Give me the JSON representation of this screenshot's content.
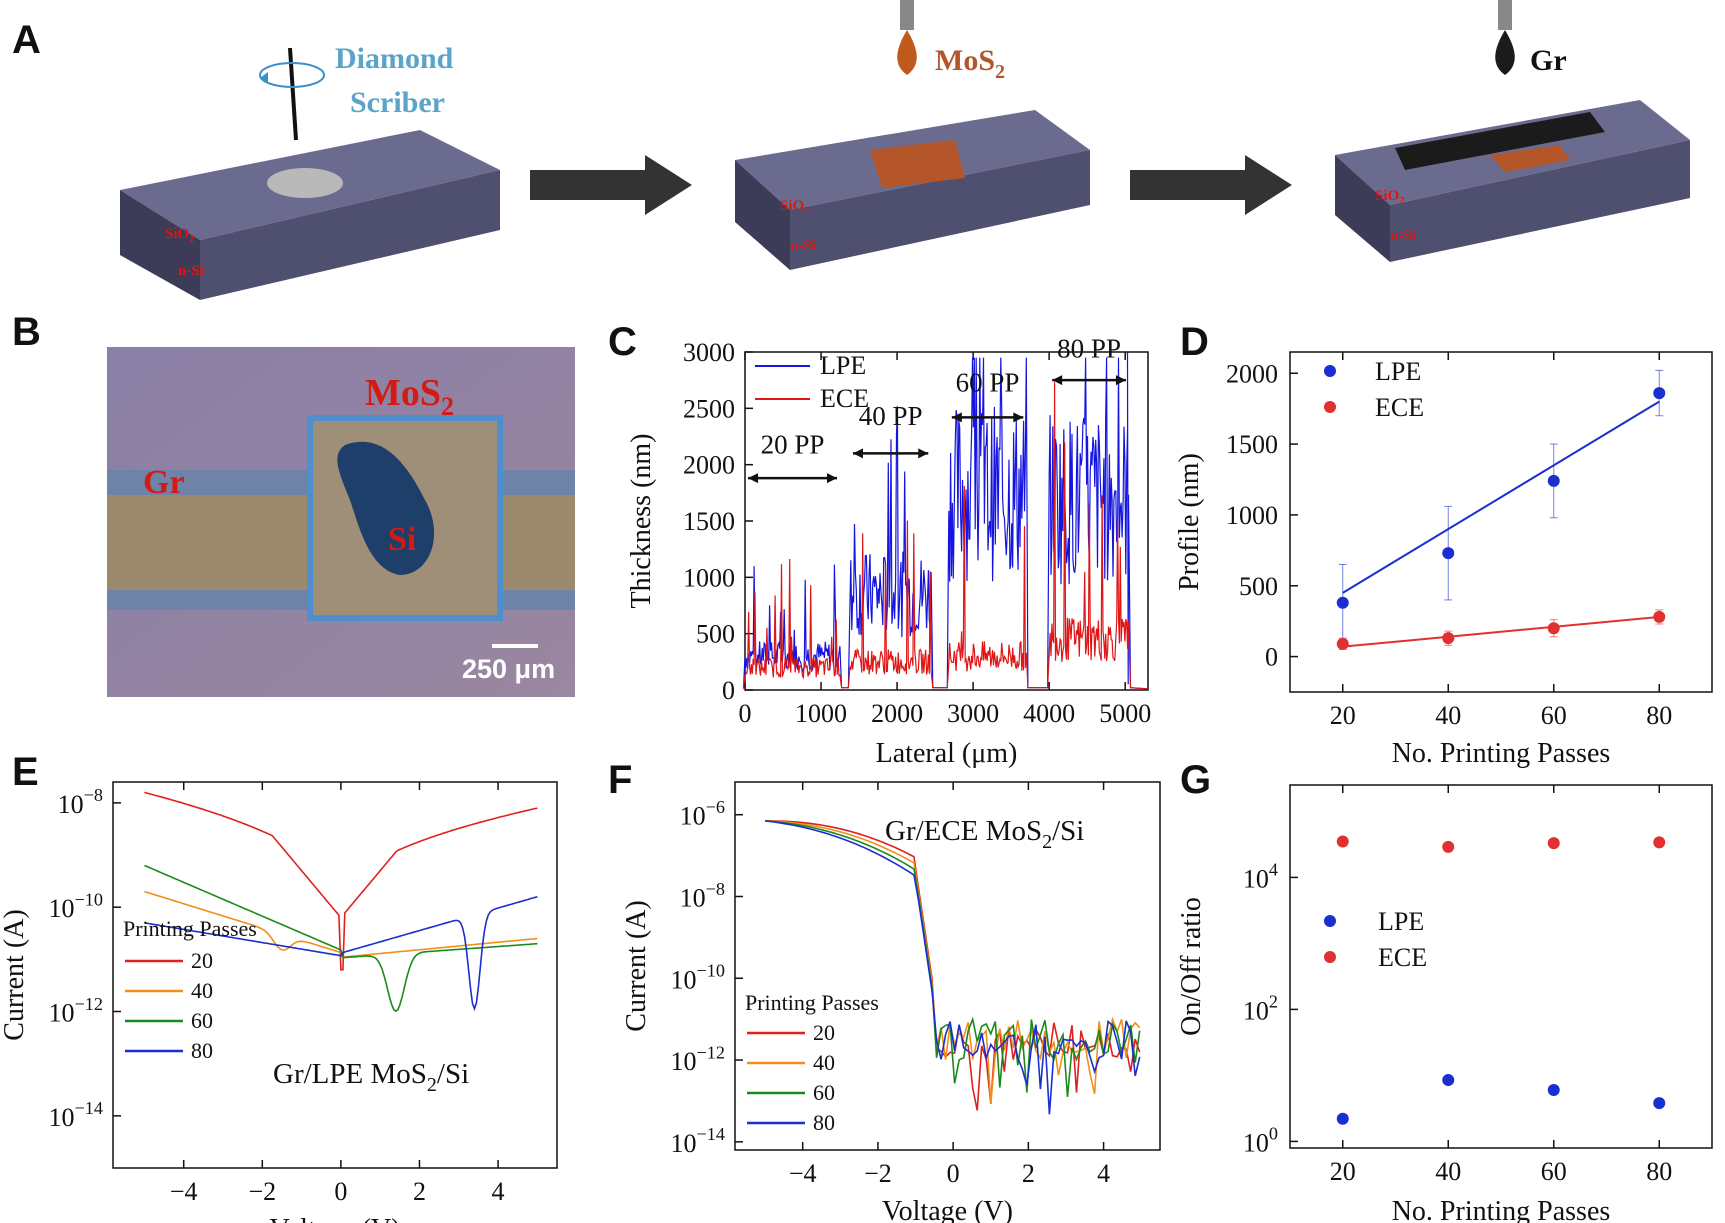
{
  "panels": {
    "A": "A",
    "B": "B",
    "C": "C",
    "D": "D",
    "E": "E",
    "F": "F",
    "G": "G"
  },
  "schematic": {
    "scriber_label_1": "Diamond",
    "scriber_label_2": "Scriber",
    "mos2_label": "MoS",
    "mos2_sub": "2",
    "gr_label": "Gr",
    "sio2": "SiO",
    "sio2_sub": "2",
    "nsi": "n-Si",
    "colors": {
      "substrate_top": "#6a6a8a",
      "substrate_front": "#4c4c68",
      "mos2": "#b5562a",
      "graphene": "#1b1b1b",
      "scriber": "#5ba3c9",
      "label_red": "#e3140f"
    }
  },
  "micrograph": {
    "mos2_label": "MoS",
    "mos2_sub": "2",
    "gr_label": "Gr",
    "si_label": "Si",
    "scale_label": "250 μm"
  },
  "chart_data": [
    {
      "id": "C",
      "type": "line",
      "xlabel": "Lateral (μm)",
      "ylabel": "Thickness (nm)",
      "xlim": [
        0,
        5300
      ],
      "ylim": [
        0,
        3000
      ],
      "xticks": [
        0,
        1000,
        2000,
        3000,
        4000,
        5000
      ],
      "yticks": [
        0,
        500,
        1000,
        1500,
        2000,
        2500,
        3000
      ],
      "legend": "top-left",
      "annotations": [
        "20 PP",
        "40 PP",
        "60 PP",
        "80 PP"
      ],
      "series": [
        {
          "name": "LPE",
          "color": "#1515e0",
          "segments": [
            [
              0,
              1250,
              300
            ],
            [
              1380,
              2450,
              850
            ],
            [
              2680,
              3700,
              1750
            ],
            [
              4000,
              5050,
              1700
            ]
          ]
        },
        {
          "name": "ECE",
          "color": "#e01515",
          "segments": [
            [
              0,
              1250,
              200
            ],
            [
              1380,
              2450,
              250
            ],
            [
              2680,
              3700,
              300
            ],
            [
              4000,
              5050,
              450
            ]
          ]
        }
      ]
    },
    {
      "id": "D",
      "type": "scatter",
      "xlabel": "No. Printing Passes",
      "ylabel": "Profile (nm)",
      "xlim": [
        10,
        90
      ],
      "ylim": [
        -250,
        2150
      ],
      "xticks": [
        20,
        40,
        60,
        80
      ],
      "yticks": [
        0,
        500,
        1000,
        1500,
        2000
      ],
      "legend": "top-left",
      "series": [
        {
          "name": "LPE",
          "color": "#1a2fd0",
          "x": [
            20,
            40,
            60,
            80
          ],
          "y": [
            380,
            730,
            1240,
            1860
          ],
          "err": [
            270,
            330,
            260,
            160
          ],
          "fit": [
            [
              20,
              450
            ],
            [
              80,
              1800
            ]
          ]
        },
        {
          "name": "ECE",
          "color": "#e03030",
          "x": [
            20,
            40,
            60,
            80
          ],
          "y": [
            90,
            130,
            200,
            280
          ],
          "err": [
            40,
            50,
            60,
            50
          ],
          "fit": [
            [
              20,
              70
            ],
            [
              80,
              280
            ]
          ]
        }
      ]
    },
    {
      "id": "E",
      "type": "line",
      "xlabel": "Voltage (V)",
      "ylabel": "Current (A)",
      "xlim": [
        -5.8,
        5.5
      ],
      "yscale": "log",
      "ylim_exp": [
        -15,
        -7.6
      ],
      "xticks": [
        -4,
        -2,
        0,
        2,
        4
      ],
      "yticks_exp": [
        -8,
        -10,
        -12,
        -14
      ],
      "legend_title": "Printing Passes",
      "legend": "bottom-left",
      "annotation": "Gr/LPE MoS",
      "annotation_sub": "2",
      "annotation_tail": "/Si",
      "series": [
        {
          "name": "20",
          "color": "#e02020"
        },
        {
          "name": "40",
          "color": "#f0901a"
        },
        {
          "name": "60",
          "color": "#1a8a1a"
        },
        {
          "name": "80",
          "color": "#1a2fd0"
        }
      ]
    },
    {
      "id": "F",
      "type": "line",
      "xlabel": "Voltage (V)",
      "ylabel": "Current (A)",
      "xlim": [
        -5.8,
        5.5
      ],
      "yscale": "log",
      "ylim_exp": [
        -14.2,
        -5.2
      ],
      "xticks": [
        -4,
        -2,
        0,
        2,
        4
      ],
      "yticks_exp": [
        -6,
        -8,
        -10,
        -12,
        -14
      ],
      "legend_title": "Printing Passes",
      "legend": "bottom-left",
      "annotation": "Gr/ECE MoS",
      "annotation_sub": "2",
      "annotation_tail": "/Si",
      "series": [
        {
          "name": "20",
          "color": "#e02020"
        },
        {
          "name": "40",
          "color": "#f0901a"
        },
        {
          "name": "60",
          "color": "#1a8a1a"
        },
        {
          "name": "80",
          "color": "#1a2fd0"
        }
      ]
    },
    {
      "id": "G",
      "type": "scatter",
      "xlabel": "No. Printing Passes",
      "ylabel": "On/Off ratio",
      "xlim": [
        10,
        90
      ],
      "yscale": "log",
      "ylim_exp": [
        -0.1,
        5.4
      ],
      "xticks": [
        20,
        40,
        60,
        80
      ],
      "yticks_exp": [
        0,
        2,
        4
      ],
      "legend": "center-left",
      "series": [
        {
          "name": "LPE",
          "color": "#1a2fd0",
          "x": [
            20,
            40,
            60,
            80
          ],
          "y": [
            2.2,
            8.5,
            6,
            3.8
          ]
        },
        {
          "name": "ECE",
          "color": "#e03030",
          "x": [
            20,
            40,
            60,
            80
          ],
          "y": [
            35000,
            29000,
            33000,
            34000
          ]
        }
      ]
    }
  ]
}
